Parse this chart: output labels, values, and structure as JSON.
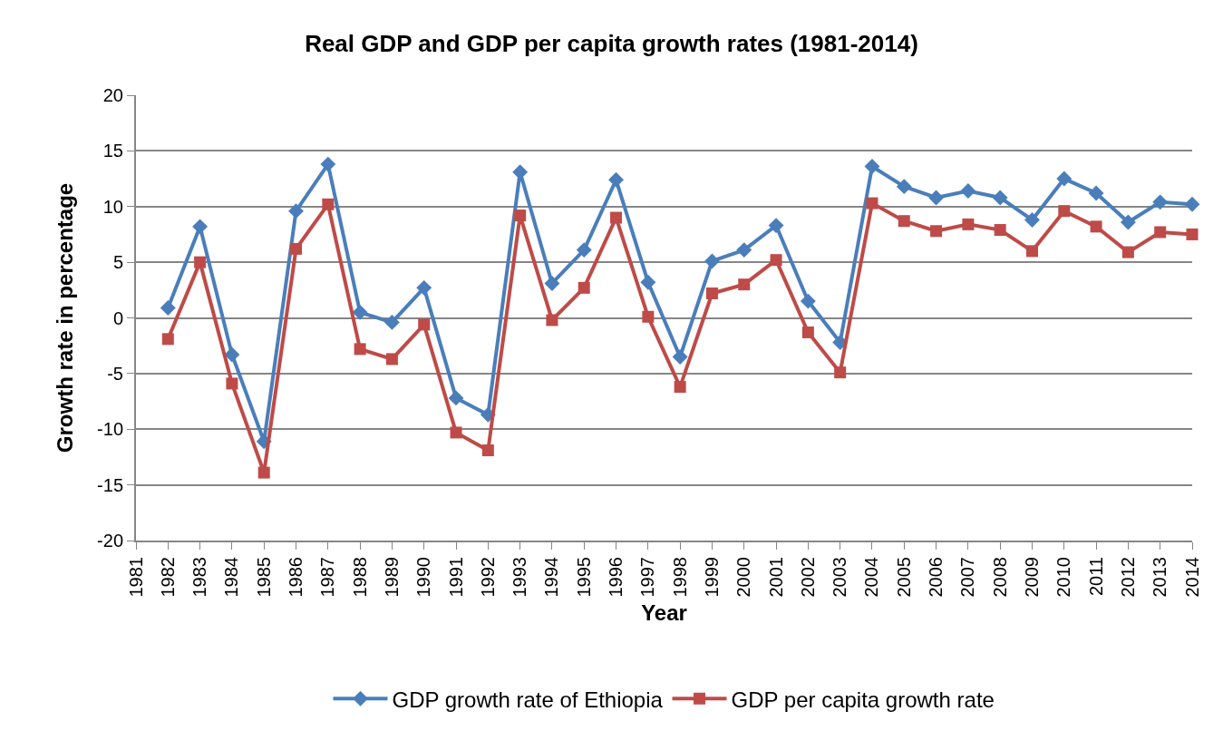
{
  "chart_data": {
    "type": "line",
    "title": "Real GDP and GDP per capita growth rates (1981-2014)",
    "xlabel": "Year",
    "ylabel": "Growth rate in percentage",
    "categories": [
      "1981",
      "1982",
      "1983",
      "1984",
      "1985",
      "1986",
      "1987",
      "1988",
      "1989",
      "1990",
      "1991",
      "1992",
      "1993",
      "1994",
      "1995",
      "1996",
      "1997",
      "1998",
      "1999",
      "2000",
      "2001",
      "2002",
      "2003",
      "2004",
      "2005",
      "2006",
      "2007",
      "2008",
      "2009",
      "2010",
      "2011",
      "2012",
      "2013",
      "2014"
    ],
    "series": [
      {
        "name": "GDP growth rate of Ethiopia",
        "color": "#4a7ebb",
        "marker": "diamond",
        "values": [
          null,
          0.9,
          8.2,
          -3.3,
          -11.1,
          9.6,
          13.8,
          0.5,
          -0.4,
          2.7,
          -7.2,
          -8.7,
          13.1,
          3.1,
          6.1,
          12.4,
          3.2,
          -3.5,
          5.1,
          6.1,
          8.3,
          1.5,
          -2.2,
          13.6,
          11.8,
          10.8,
          11.4,
          10.8,
          8.8,
          12.5,
          11.2,
          8.6,
          10.4,
          10.2
        ]
      },
      {
        "name": "GDP per capita growth rate",
        "color": "#be4b48",
        "marker": "square",
        "values": [
          null,
          -1.9,
          5.0,
          -5.9,
          -13.9,
          6.2,
          10.2,
          -2.8,
          -3.7,
          -0.6,
          -10.3,
          -11.9,
          9.2,
          -0.2,
          2.7,
          9.0,
          0.1,
          -6.2,
          2.2,
          3.0,
          5.2,
          -1.3,
          -4.9,
          10.3,
          8.7,
          7.8,
          8.4,
          7.9,
          6.0,
          9.6,
          8.2,
          5.9,
          7.7,
          7.5
        ]
      }
    ],
    "ylim": [
      -20,
      20
    ],
    "yticks": [
      -20,
      -15,
      -10,
      -5,
      0,
      5,
      10,
      15,
      20
    ],
    "grid": "y",
    "legend": "bottom",
    "line_style": "solid"
  }
}
